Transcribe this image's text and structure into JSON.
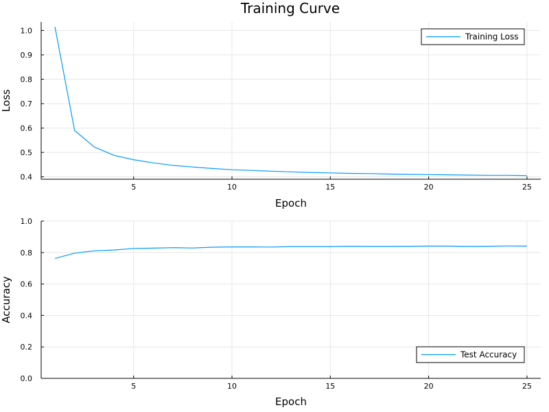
{
  "title": "Training Curve",
  "chart_data": [
    {
      "type": "line",
      "xlabel": "Epoch",
      "ylabel": "Loss",
      "xlim": [
        0.3,
        25.7
      ],
      "ylim": [
        0.39,
        1.035
      ],
      "xticks": [
        5,
        10,
        15,
        20,
        25
      ],
      "yticks": [
        0.4,
        0.5,
        0.6,
        0.7,
        0.8,
        0.9,
        1.0
      ],
      "ytick_labels": [
        "0.4",
        "0.5",
        "0.6",
        "0.7",
        "0.8",
        "0.9",
        "1.0"
      ],
      "grid": true,
      "legend_position": "top-right",
      "x": [
        1,
        2,
        3,
        4,
        5,
        6,
        7,
        8,
        9,
        10,
        11,
        12,
        13,
        14,
        15,
        16,
        17,
        18,
        19,
        20,
        21,
        22,
        23,
        24,
        25
      ],
      "series": [
        {
          "name": "Training Loss",
          "color": "#009AFA",
          "values": [
            1.015,
            0.59,
            0.522,
            0.488,
            0.47,
            0.457,
            0.447,
            0.44,
            0.434,
            0.429,
            0.426,
            0.423,
            0.42,
            0.418,
            0.416,
            0.414,
            0.413,
            0.411,
            0.41,
            0.409,
            0.408,
            0.407,
            0.406,
            0.406,
            0.405
          ]
        }
      ]
    },
    {
      "type": "line",
      "xlabel": "Epoch",
      "ylabel": "Accuracy",
      "xlim": [
        0.3,
        25.7
      ],
      "ylim": [
        0.0,
        1.0
      ],
      "xticks": [
        5,
        10,
        15,
        20,
        25
      ],
      "yticks": [
        0.0,
        0.2,
        0.4,
        0.6,
        0.8,
        1.0
      ],
      "ytick_labels": [
        "0.0",
        "0.2",
        "0.4",
        "0.6",
        "0.8",
        "1.0"
      ],
      "grid": true,
      "legend_position": "bottom-right",
      "x": [
        1,
        2,
        3,
        4,
        5,
        6,
        7,
        8,
        9,
        10,
        11,
        12,
        13,
        14,
        15,
        16,
        17,
        18,
        19,
        20,
        21,
        22,
        23,
        24,
        25
      ],
      "series": [
        {
          "name": "Test Accuracy",
          "color": "#009AFA",
          "values": [
            0.763,
            0.796,
            0.811,
            0.816,
            0.826,
            0.828,
            0.831,
            0.829,
            0.834,
            0.836,
            0.836,
            0.835,
            0.838,
            0.838,
            0.838,
            0.84,
            0.839,
            0.839,
            0.84,
            0.841,
            0.841,
            0.839,
            0.84,
            0.842,
            0.841
          ]
        }
      ]
    }
  ]
}
